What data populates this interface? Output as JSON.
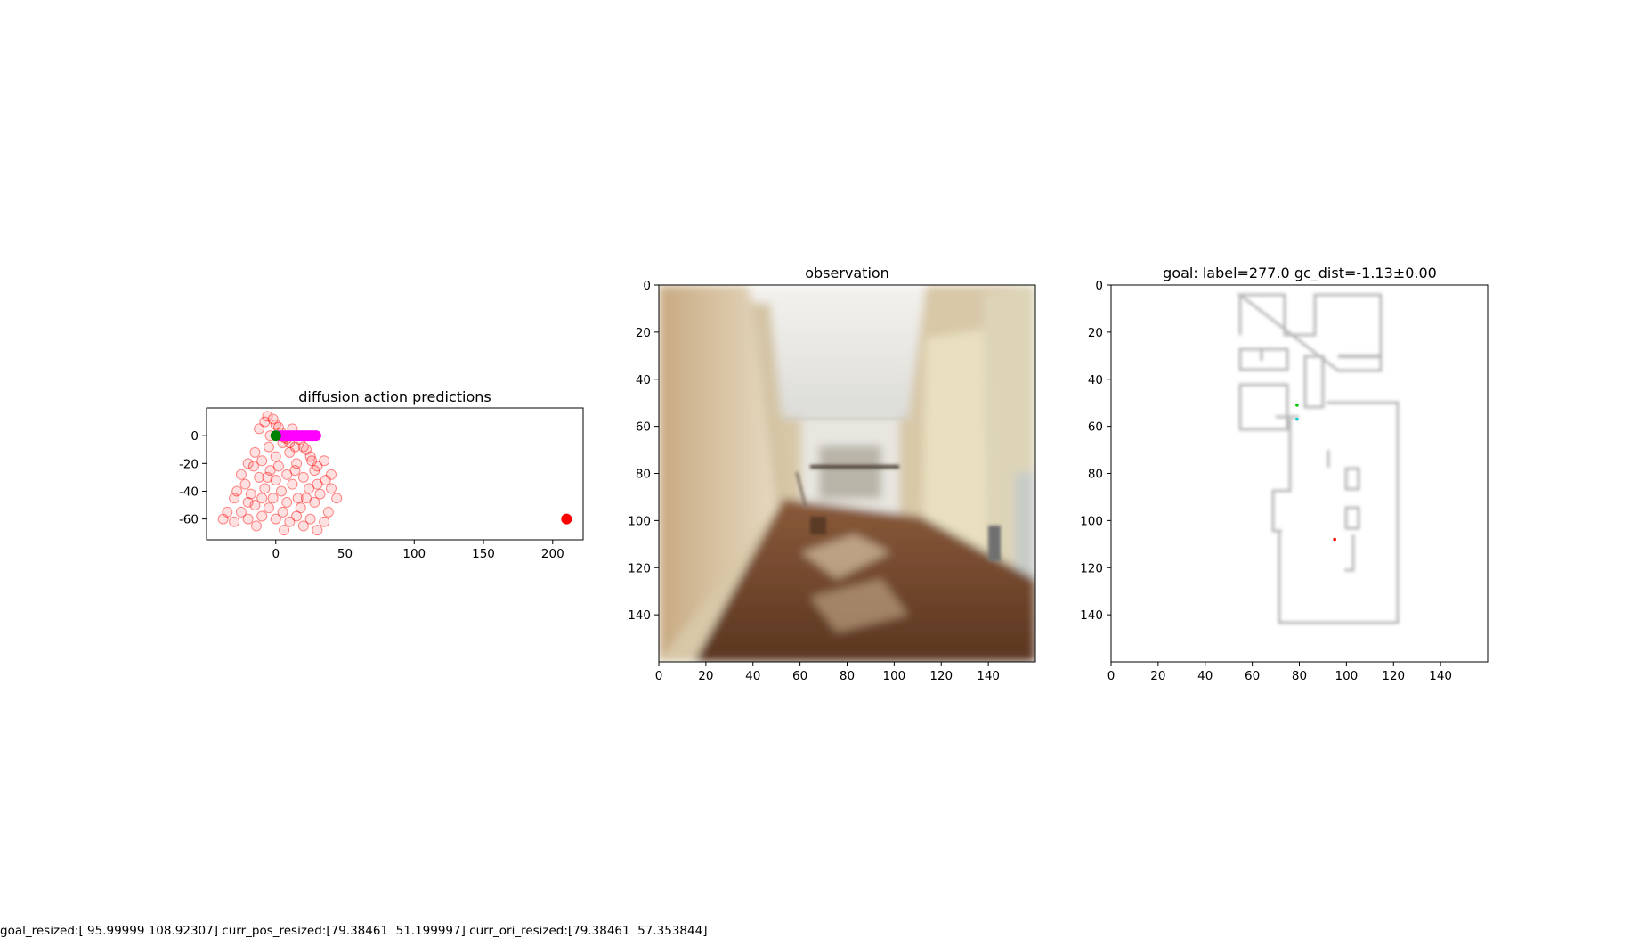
{
  "footer_text": "goal_resized:[ 95.99999 108.92307] curr_pos_resized:[79.38461  51.199997] curr_ori_resized:[79.38461  57.353844]",
  "chart_data": [
    {
      "type": "scatter",
      "title": "diffusion action predictions",
      "xlim": [
        -50,
        222
      ],
      "ylim": [
        -75,
        20
      ],
      "xticks": [
        0,
        50,
        100,
        150,
        200
      ],
      "yticks": [
        0,
        -20,
        -40,
        -60
      ],
      "grid": false,
      "series": [
        {
          "color": "#ff0000",
          "marker": "hollow-circle",
          "values": [
            [
              -35,
              -55
            ],
            [
              -38,
              -60
            ],
            [
              -30,
              -62
            ],
            [
              -25,
              -55
            ],
            [
              -20,
              -60
            ],
            [
              -15,
              -50
            ],
            [
              -10,
              -58
            ],
            [
              -5,
              -52
            ],
            [
              0,
              -60
            ],
            [
              5,
              -55
            ],
            [
              10,
              -62
            ],
            [
              15,
              -58
            ],
            [
              20,
              -65
            ],
            [
              25,
              -60
            ],
            [
              30,
              -68
            ],
            [
              35,
              -62
            ],
            [
              -28,
              -40
            ],
            [
              -22,
              -35
            ],
            [
              -18,
              -42
            ],
            [
              -12,
              -30
            ],
            [
              -8,
              -38
            ],
            [
              -4,
              -25
            ],
            [
              0,
              -32
            ],
            [
              4,
              -40
            ],
            [
              8,
              -28
            ],
            [
              12,
              -35
            ],
            [
              16,
              -45
            ],
            [
              20,
              -30
            ],
            [
              24,
              -38
            ],
            [
              28,
              -25
            ],
            [
              32,
              -42
            ],
            [
              36,
              -32
            ],
            [
              40,
              -38
            ],
            [
              44,
              -45
            ],
            [
              -20,
              -20
            ],
            [
              -15,
              -12
            ],
            [
              -10,
              -18
            ],
            [
              -5,
              -8
            ],
            [
              0,
              -15
            ],
            [
              5,
              -5
            ],
            [
              10,
              -12
            ],
            [
              15,
              -20
            ],
            [
              20,
              -8
            ],
            [
              25,
              -15
            ],
            [
              30,
              -22
            ],
            [
              35,
              -18
            ],
            [
              40,
              -28
            ],
            [
              -12,
              5
            ],
            [
              -8,
              10
            ],
            [
              -4,
              0
            ],
            [
              0,
              8
            ],
            [
              4,
              2
            ],
            [
              8,
              -2
            ],
            [
              12,
              5
            ],
            [
              -6,
              14
            ],
            [
              -2,
              12
            ],
            [
              2,
              6
            ],
            [
              6,
              -1
            ],
            [
              10,
              -5
            ],
            [
              14,
              -8
            ],
            [
              18,
              -3
            ],
            [
              22,
              -10
            ],
            [
              26,
              -18
            ],
            [
              -25,
              -28
            ],
            [
              -20,
              -48
            ],
            [
              -30,
              -45
            ],
            [
              -14,
              -65
            ],
            [
              -2,
              -45
            ],
            [
              6,
              -68
            ],
            [
              18,
              -52
            ],
            [
              28,
              -48
            ],
            [
              38,
              -55
            ],
            [
              -16,
              -22
            ],
            [
              -6,
              -30
            ],
            [
              2,
              -22
            ],
            [
              14,
              -25
            ],
            [
              22,
              -45
            ],
            [
              30,
              -35
            ],
            [
              8,
              -48
            ],
            [
              -10,
              -45
            ]
          ]
        },
        {
          "color": "#ff00ff",
          "marker": "filled-circle",
          "values": [
            [
              3,
              0
            ],
            [
              5,
              0
            ],
            [
              7,
              0
            ],
            [
              9,
              0
            ],
            [
              11,
              0
            ],
            [
              13,
              0
            ],
            [
              15,
              0
            ],
            [
              17,
              0
            ],
            [
              19,
              0
            ],
            [
              21,
              0
            ],
            [
              23,
              0
            ],
            [
              25,
              0
            ],
            [
              27,
              0
            ],
            [
              29,
              0
            ]
          ]
        },
        {
          "color": "#008000",
          "marker": "filled-circle",
          "values": [
            [
              0,
              0
            ]
          ]
        },
        {
          "color": "#ff0000",
          "marker": "filled-circle",
          "values": [
            [
              210,
              -60
            ]
          ]
        }
      ]
    },
    {
      "type": "image",
      "title": "observation",
      "xlim": [
        0,
        160
      ],
      "ylim": [
        0,
        160
      ],
      "xticks": [
        0,
        20,
        40,
        60,
        80,
        100,
        120,
        140
      ],
      "yticks": [
        0,
        20,
        40,
        60,
        80,
        100,
        120,
        140
      ]
    },
    {
      "type": "image",
      "title": "goal: label=277.0 gc_dist=-1.13±0.00",
      "xlim": [
        0,
        160
      ],
      "ylim": [
        0,
        160
      ],
      "xticks": [
        0,
        20,
        40,
        60,
        80,
        100,
        120,
        140
      ],
      "yticks": [
        0,
        20,
        40,
        60,
        80,
        100,
        120,
        140
      ],
      "markers": [
        {
          "color": "#00cc00",
          "x": 79,
          "y": 51
        },
        {
          "color": "#00cccc",
          "x": 79,
          "y": 57
        },
        {
          "color": "#ff0000",
          "x": 95,
          "y": 108
        }
      ]
    }
  ]
}
